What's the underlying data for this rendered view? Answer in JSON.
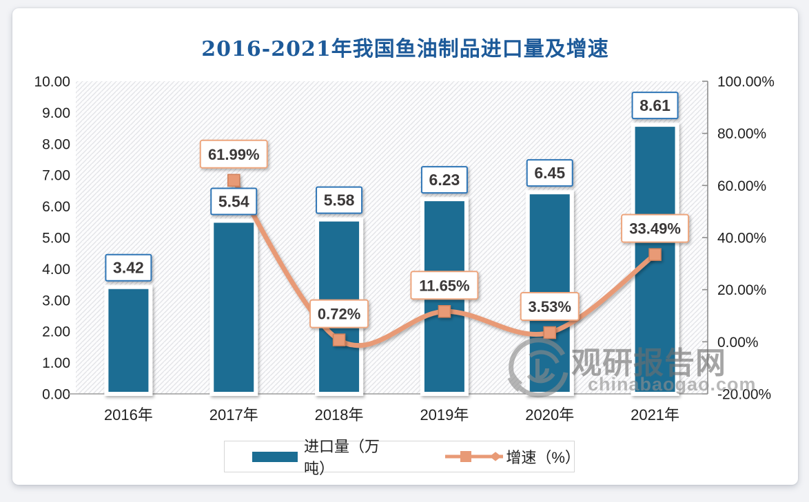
{
  "watermark": {
    "name": "观研报告网",
    "domain": "chinabaogao.com"
  },
  "chart_data": {
    "type": "bar+line combo",
    "title": "2016-2021年我国鱼油制品进口量及增速",
    "categories": [
      "2016年",
      "2017年",
      "2018年",
      "2019年",
      "2020年",
      "2021年"
    ],
    "series": [
      {
        "name": "进口量（万吨）",
        "type": "bar",
        "axis": "left",
        "values": [
          3.42,
          5.54,
          5.58,
          6.23,
          6.45,
          8.61
        ],
        "labels": [
          "3.42",
          "5.54",
          "5.58",
          "6.23",
          "6.45",
          "8.61"
        ]
      },
      {
        "name": "增速（%）",
        "type": "line",
        "axis": "right",
        "values": [
          null,
          61.99,
          0.72,
          11.65,
          3.53,
          33.49
        ],
        "labels": [
          null,
          "61.99%",
          "0.72%",
          "11.65%",
          "3.53%",
          "33.49%"
        ]
      }
    ],
    "left_axis": {
      "min": 0,
      "max": 10,
      "step": 1,
      "ticks": [
        "10.00",
        "9.00",
        "8.00",
        "7.00",
        "6.00",
        "5.00",
        "4.00",
        "3.00",
        "2.00",
        "1.00",
        "0.00"
      ]
    },
    "right_axis": {
      "min": -20,
      "max": 100,
      "step": 20,
      "ticks": [
        "100.00%",
        "80.00%",
        "60.00%",
        "40.00%",
        "20.00%",
        "0.00%",
        "-20.00%"
      ]
    },
    "legend": {
      "position": "bottom",
      "entries": [
        "进口量（万吨）",
        "增速（%）"
      ]
    },
    "grid": "diagonal-hatch-background, no gridlines",
    "colors": {
      "bar": "#1b6d93",
      "line": "#e89a76",
      "marker_border": "#d2805a",
      "bar_label_border": "#2e75b6",
      "pct_label_border": "#eda57d",
      "title": "#1d5a99",
      "axis_text": "#1f1f1f",
      "label_text": "#3b3838",
      "axis_line": "#8c8c8c"
    }
  }
}
